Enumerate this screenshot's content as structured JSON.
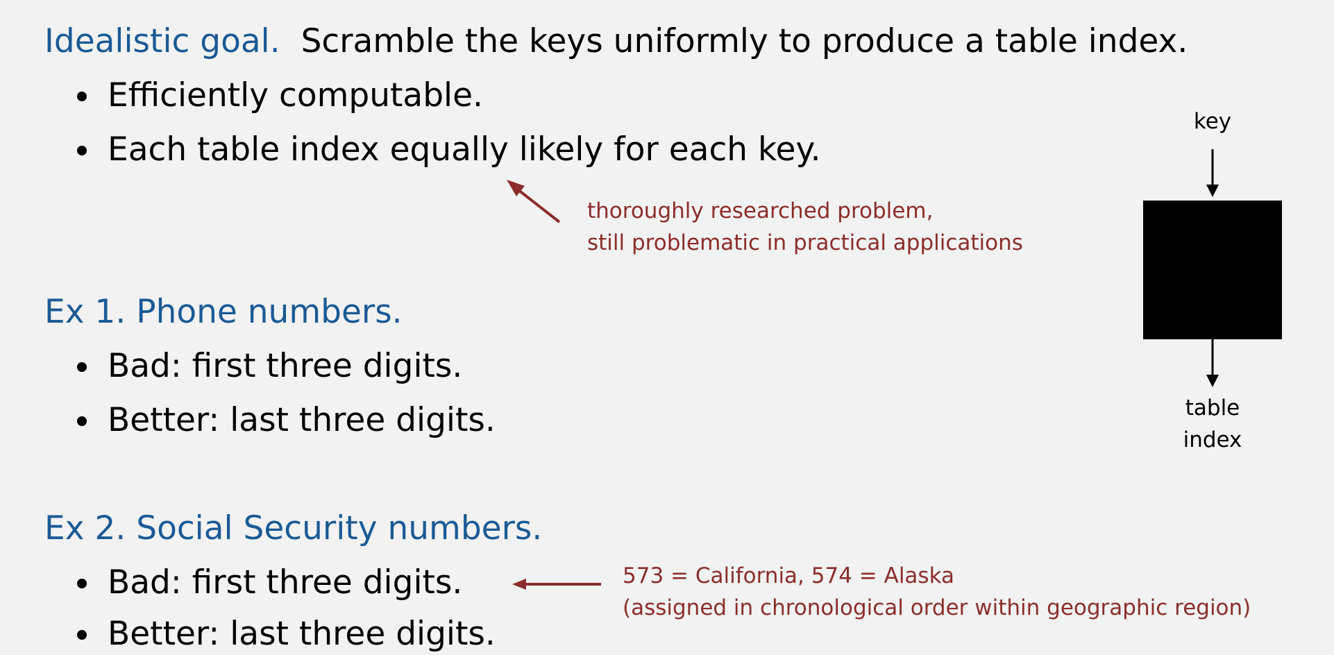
{
  "idealistic": {
    "heading": "Idealistic goal.",
    "text": "Scramble the keys uniformly to produce a table index.",
    "bullets": [
      "Efficiently computable.",
      "Each table index equally likely for each key."
    ],
    "note_lines": [
      "thoroughly researched problem,",
      "still problematic in practical applications"
    ]
  },
  "ex1": {
    "heading": "Ex 1.  Phone numbers.",
    "bullets": [
      "Bad:  first three digits.",
      "Better:  last three digits."
    ]
  },
  "ex2": {
    "heading": "Ex 2.  Social Security numbers.",
    "bullets": [
      "Bad:  first three digits.",
      "Better:  last three digits."
    ],
    "note_lines": [
      "573 = California, 574 = Alaska",
      "(assigned in chronological order within geographic region)"
    ]
  },
  "diagram": {
    "input_label": "key",
    "output_label_lines": [
      "table",
      "index"
    ]
  },
  "colors": {
    "heading": "#1a5a96",
    "annotation": "#8b2d2a",
    "box": "#000000",
    "background": "#f2f2f2"
  }
}
